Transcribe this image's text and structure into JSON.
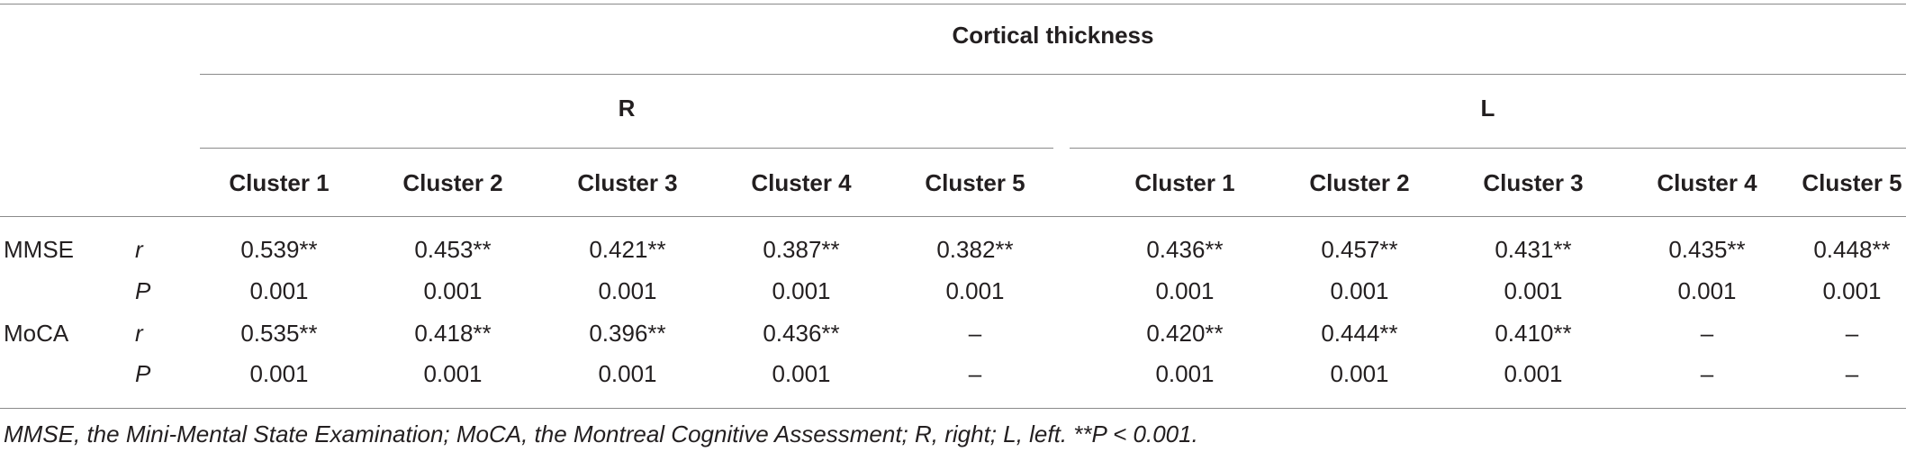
{
  "table": {
    "spanner": "Cortical thickness",
    "groups": [
      "R",
      "L"
    ],
    "clusters": [
      "Cluster 1",
      "Cluster 2",
      "Cluster 3",
      "Cluster 4",
      "Cluster 5",
      "Cluster 1",
      "Cluster 2",
      "Cluster 3",
      "Cluster 4",
      "Cluster 5"
    ],
    "rows": [
      {
        "measure": "MMSE",
        "stat": "r",
        "cells": [
          "0.539**",
          "0.453**",
          "0.421**",
          "0.387**",
          "0.382**",
          "0.436**",
          "0.457**",
          "0.431**",
          "0.435**",
          "0.448**"
        ]
      },
      {
        "measure": "",
        "stat": "P",
        "cells": [
          "0.001",
          "0.001",
          "0.001",
          "0.001",
          "0.001",
          "0.001",
          "0.001",
          "0.001",
          "0.001",
          "0.001"
        ]
      },
      {
        "measure": "MoCA",
        "stat": "r",
        "cells": [
          "0.535**",
          "0.418**",
          "0.396**",
          "0.436**",
          "–",
          "0.420**",
          "0.444**",
          "0.410**",
          "–",
          "–"
        ]
      },
      {
        "measure": "",
        "stat": "P",
        "cells": [
          "0.001",
          "0.001",
          "0.001",
          "0.001",
          "–",
          "0.001",
          "0.001",
          "0.001",
          "–",
          "–"
        ]
      }
    ]
  },
  "footnote": "MMSE, the Mini-Mental State Examination; MoCA, the Montreal Cognitive Assessment; R, right; L, left. **P < 0.001."
}
